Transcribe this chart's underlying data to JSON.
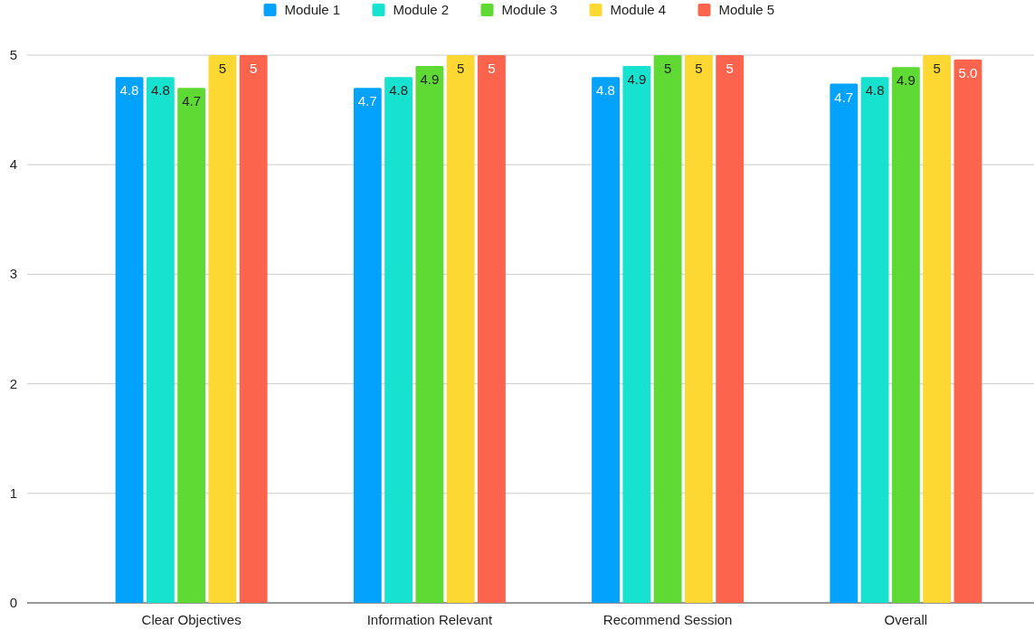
{
  "chart_data": {
    "type": "bar",
    "categories": [
      "Clear Objectives",
      "Information Relevant",
      "Recommend Session",
      "Overall"
    ],
    "series": [
      {
        "name": "Module 1",
        "color": "#03a2fd",
        "values": [
          4.8,
          4.7,
          4.8,
          4.74
        ],
        "value_labels": [
          "4.8",
          "4.7",
          "4.8",
          "4.7"
        ]
      },
      {
        "name": "Module 2",
        "color": "#16e2cf",
        "values": [
          4.8,
          4.8,
          4.9,
          4.8
        ],
        "value_labels": [
          "4.8",
          "4.8",
          "4.9",
          "4.8"
        ]
      },
      {
        "name": "Module 3",
        "color": "#5fd933",
        "values": [
          4.7,
          4.9,
          5,
          4.89
        ],
        "value_labels": [
          "4.7",
          "4.9",
          "5",
          "4.9"
        ]
      },
      {
        "name": "Module 4",
        "color": "#fdd833",
        "values": [
          5,
          5,
          5,
          5
        ],
        "value_labels": [
          "5",
          "5",
          "5",
          "5"
        ]
      },
      {
        "name": "Module 5",
        "color": "#fd644e",
        "values": [
          5,
          5,
          5,
          4.96
        ],
        "value_labels": [
          "5",
          "5",
          "5",
          "5.0"
        ]
      }
    ],
    "ylim": [
      0,
      5
    ],
    "yticks": [
      0,
      1,
      2,
      3,
      4,
      5
    ],
    "grid": "y",
    "legend": "top"
  }
}
